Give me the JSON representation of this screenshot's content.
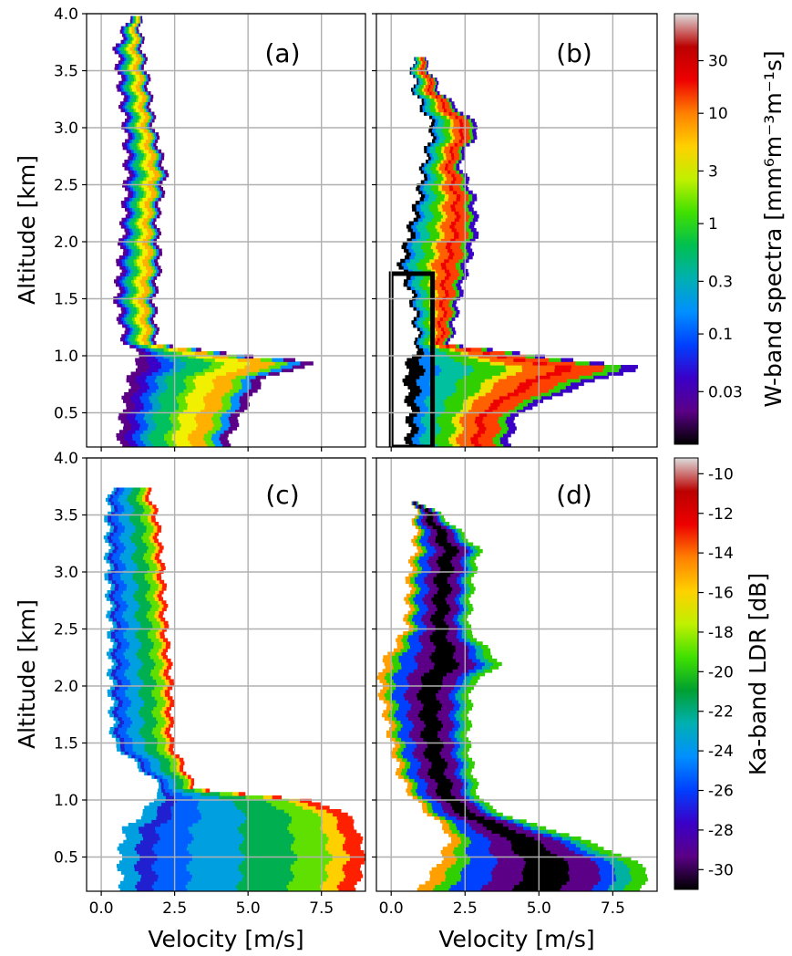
{
  "chart_data": [
    {
      "type": "heatmap",
      "panel_label": "(a)",
      "ylabel": "Altitude [km]",
      "xlabel": "",
      "xlim": [
        -0.5,
        9.0
      ],
      "ylim": [
        0.2,
        4.0
      ],
      "xticks": [
        0.0,
        2.5,
        5.0,
        7.5
      ],
      "yticks": [
        0.5,
        1.0,
        1.5,
        2.0,
        2.5,
        3.0,
        3.5,
        4.0
      ],
      "grid": true,
      "colorbar": "W-band spectra",
      "profile": [
        [
          0.25,
          0.6,
          4.3
        ],
        [
          0.5,
          0.7,
          4.8
        ],
        [
          0.8,
          0.95,
          5.5
        ],
        [
          0.95,
          1.2,
          7.4
        ],
        [
          1.0,
          1.4,
          5.0
        ],
        [
          1.1,
          0.8,
          1.9
        ],
        [
          1.5,
          0.5,
          1.8
        ],
        [
          1.8,
          0.6,
          2.0
        ],
        [
          2.2,
          0.75,
          1.9
        ],
        [
          2.6,
          0.85,
          2.2
        ],
        [
          3.0,
          0.8,
          1.8
        ],
        [
          3.4,
          0.6,
          1.6
        ],
        [
          3.7,
          0.5,
          1.4
        ],
        [
          3.95,
          0.9,
          1.3
        ]
      ],
      "bands": [
        [
          0.02,
          "#000000"
        ],
        [
          0.06,
          "#5b0087"
        ],
        [
          0.12,
          "#3a00c8"
        ],
        [
          0.2,
          "#0050ff"
        ],
        [
          0.3,
          "#00a0c0"
        ],
        [
          0.4,
          "#00c060"
        ],
        [
          0.52,
          "#60e000"
        ],
        [
          0.66,
          "#f0f000"
        ],
        [
          0.78,
          "#ffb000"
        ],
        [
          0.86,
          "#60e000"
        ],
        [
          0.93,
          "#0090ff"
        ],
        [
          1.0,
          "#5b0087"
        ]
      ]
    },
    {
      "type": "heatmap",
      "panel_label": "(b)",
      "ylabel": "",
      "xlabel": "",
      "xlim": [
        -0.5,
        9.0
      ],
      "ylim": [
        0.2,
        4.0
      ],
      "xticks": [
        0.0,
        2.5,
        5.0,
        7.5
      ],
      "yticks": [
        0.5,
        1.0,
        1.5,
        2.0,
        2.5,
        3.0,
        3.5,
        4.0
      ],
      "grid": true,
      "colorbar": "W-band spectra",
      "highlight_box": {
        "x": [
          0.0,
          1.4
        ],
        "y": [
          0.2,
          1.72
        ]
      },
      "profile": [
        [
          0.25,
          0.55,
          4.0
        ],
        [
          0.5,
          0.6,
          4.3
        ],
        [
          0.75,
          0.5,
          6.5
        ],
        [
          0.9,
          0.5,
          8.5
        ],
        [
          1.0,
          0.7,
          5.0
        ],
        [
          1.1,
          0.9,
          2.0
        ],
        [
          1.5,
          0.7,
          2.3
        ],
        [
          1.8,
          0.3,
          2.6
        ],
        [
          2.1,
          0.6,
          2.9
        ],
        [
          2.4,
          0.9,
          2.8
        ],
        [
          2.7,
          1.1,
          2.3
        ],
        [
          3.0,
          1.4,
          3.0
        ],
        [
          3.3,
          0.8,
          1.7
        ],
        [
          3.6,
          0.7,
          1.1
        ]
      ],
      "bands": [
        [
          0.04,
          "#000000"
        ],
        [
          0.09,
          "#3a00c8"
        ],
        [
          0.16,
          "#0080ff"
        ],
        [
          0.26,
          "#00c0a0"
        ],
        [
          0.4,
          "#30d000"
        ],
        [
          0.52,
          "#f0e000"
        ],
        [
          0.62,
          "#ff6000"
        ],
        [
          0.74,
          "#ee0000"
        ],
        [
          0.86,
          "#ff4000"
        ],
        [
          0.93,
          "#30d000"
        ],
        [
          1.0,
          "#3a00c8"
        ]
      ]
    },
    {
      "type": "heatmap",
      "panel_label": "(c)",
      "ylabel": "Altitude [km]",
      "xlabel": "Velocity [m/s]",
      "xlim": [
        -0.5,
        9.0
      ],
      "ylim": [
        0.2,
        4.0
      ],
      "xticks": [
        0.0,
        2.5,
        5.0,
        7.5
      ],
      "yticks": [
        0.5,
        1.0,
        1.5,
        2.0,
        2.5,
        3.0,
        3.5,
        4.0
      ],
      "grid": true,
      "colorbar": "Ka-band LDR",
      "profile": [
        [
          0.25,
          0.7,
          8.7
        ],
        [
          0.5,
          0.6,
          9.0
        ],
        [
          0.75,
          0.8,
          8.7
        ],
        [
          0.9,
          1.5,
          8.3
        ],
        [
          1.0,
          1.7,
          7.0
        ],
        [
          1.1,
          2.1,
          3.2
        ],
        [
          1.5,
          0.4,
          2.4
        ],
        [
          2.0,
          0.3,
          2.4
        ],
        [
          2.5,
          0.3,
          2.2
        ],
        [
          3.0,
          0.2,
          2.1
        ],
        [
          3.5,
          0.2,
          1.9
        ],
        [
          3.7,
          0.3,
          1.6
        ]
      ],
      "bands": [
        [
          0.06,
          "#00a0e0"
        ],
        [
          0.15,
          "#2020d0"
        ],
        [
          0.3,
          "#0060ff"
        ],
        [
          0.48,
          "#00a0e0"
        ],
        [
          0.72,
          "#00b050"
        ],
        [
          0.86,
          "#60e000"
        ],
        [
          0.94,
          "#ffd000"
        ],
        [
          1.0,
          "#ff2000"
        ]
      ]
    },
    {
      "type": "heatmap",
      "panel_label": "(d)",
      "ylabel": "",
      "xlabel": "Velocity [m/s]",
      "xlim": [
        -0.5,
        9.0
      ],
      "ylim": [
        0.2,
        4.0
      ],
      "xticks": [
        0.0,
        2.5,
        5.0,
        7.5
      ],
      "yticks": [
        0.5,
        1.0,
        1.5,
        2.0,
        2.5,
        3.0,
        3.5,
        4.0
      ],
      "grid": true,
      "colorbar": "Ka-band LDR",
      "profile": [
        [
          0.25,
          1.0,
          8.5
        ],
        [
          0.4,
          1.5,
          8.7
        ],
        [
          0.55,
          1.8,
          7.5
        ],
        [
          0.7,
          2.0,
          6.0
        ],
        [
          0.85,
          1.4,
          4.0
        ],
        [
          1.0,
          0.8,
          3.0
        ],
        [
          1.2,
          0.3,
          2.8
        ],
        [
          1.5,
          0.0,
          2.6
        ],
        [
          2.0,
          -0.4,
          2.7
        ],
        [
          2.2,
          -0.3,
          3.7
        ],
        [
          2.5,
          0.5,
          2.6
        ],
        [
          3.0,
          0.6,
          2.8
        ],
        [
          3.2,
          0.8,
          3.0
        ],
        [
          3.5,
          0.8,
          1.7
        ],
        [
          3.6,
          0.8,
          1.0
        ]
      ],
      "bands": [
        [
          0.08,
          "#ffa000"
        ],
        [
          0.16,
          "#30d000"
        ],
        [
          0.26,
          "#0040ff"
        ],
        [
          0.4,
          "#5b0087"
        ],
        [
          0.62,
          "#000000"
        ],
        [
          0.76,
          "#5b0087"
        ],
        [
          0.88,
          "#0040ff"
        ],
        [
          0.95,
          "#00b0a0"
        ],
        [
          1.0,
          "#30d000"
        ]
      ]
    }
  ],
  "colorbars": {
    "w_band": {
      "label": "W-band spectra [mm⁶m⁻³m⁻¹s]",
      "ticks": [
        "30",
        "10",
        "3",
        "1",
        "0.3",
        "0.1",
        "0.03"
      ],
      "tick_values": [
        30,
        10,
        3,
        1,
        0.3,
        0.1,
        0.03
      ],
      "range": [
        0.01,
        80
      ],
      "scale": "log",
      "colors": [
        "#000000",
        "#5b0087",
        "#3a00c8",
        "#0040ff",
        "#0090ff",
        "#00b0b0",
        "#00c050",
        "#40e000",
        "#c0f000",
        "#ffd000",
        "#ff8000",
        "#ee0000",
        "#bb0000",
        "#dddddd"
      ]
    },
    "ka_ldr": {
      "label": "Ka-band LDR [dB]",
      "ticks": [
        "-10",
        "-12",
        "-14",
        "-16",
        "-18",
        "-20",
        "-22",
        "-24",
        "-26",
        "-28",
        "-30"
      ],
      "tick_values": [
        -10,
        -12,
        -14,
        -16,
        -18,
        -20,
        -22,
        -24,
        -26,
        -28,
        -30
      ],
      "range": [
        -31,
        -9.2
      ],
      "scale": "linear",
      "colors": [
        "#000000",
        "#5b0087",
        "#3a00c8",
        "#0040ff",
        "#0090ff",
        "#00b0b0",
        "#00a030",
        "#40e000",
        "#c0f000",
        "#ffd000",
        "#ff8000",
        "#ee0000",
        "#bb0000",
        "#dddddd"
      ]
    }
  }
}
